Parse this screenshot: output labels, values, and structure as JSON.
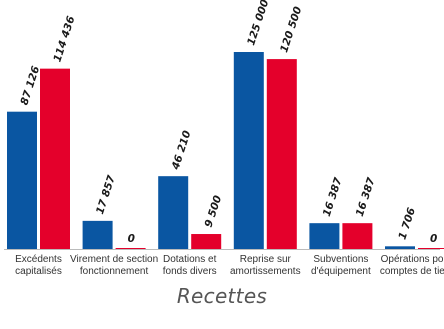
{
  "chart_data": {
    "type": "bar",
    "title": "Recettes",
    "categories": [
      [
        "Excédents",
        "capitalisés"
      ],
      [
        "Virement de section",
        "fonctionnement"
      ],
      [
        "Dotations et",
        "fonds divers"
      ],
      [
        "Reprise sur",
        "amortissements"
      ],
      [
        "Subventions",
        "d'équipement"
      ],
      [
        "Opérations pour",
        "comptes de tiers"
      ]
    ],
    "series": [
      {
        "values": [
          87126,
          17857,
          46210,
          125000,
          16387,
          1706
        ],
        "labels": [
          "87 126",
          "17 857",
          "46 210",
          "125 000",
          "16 387",
          "1 706"
        ],
        "color": "#0a56a2"
      },
      {
        "values": [
          114436,
          0,
          9500,
          120500,
          16387,
          0
        ],
        "labels": [
          "114 436",
          "0",
          "9 500",
          "120 500",
          "16 387",
          "0"
        ],
        "color": "#e4002b"
      }
    ],
    "ylim": [
      0,
      125000
    ],
    "grid": false,
    "legend": "none",
    "label_color": "#1a1a1a",
    "axis_color": "#bbbbbb"
  }
}
